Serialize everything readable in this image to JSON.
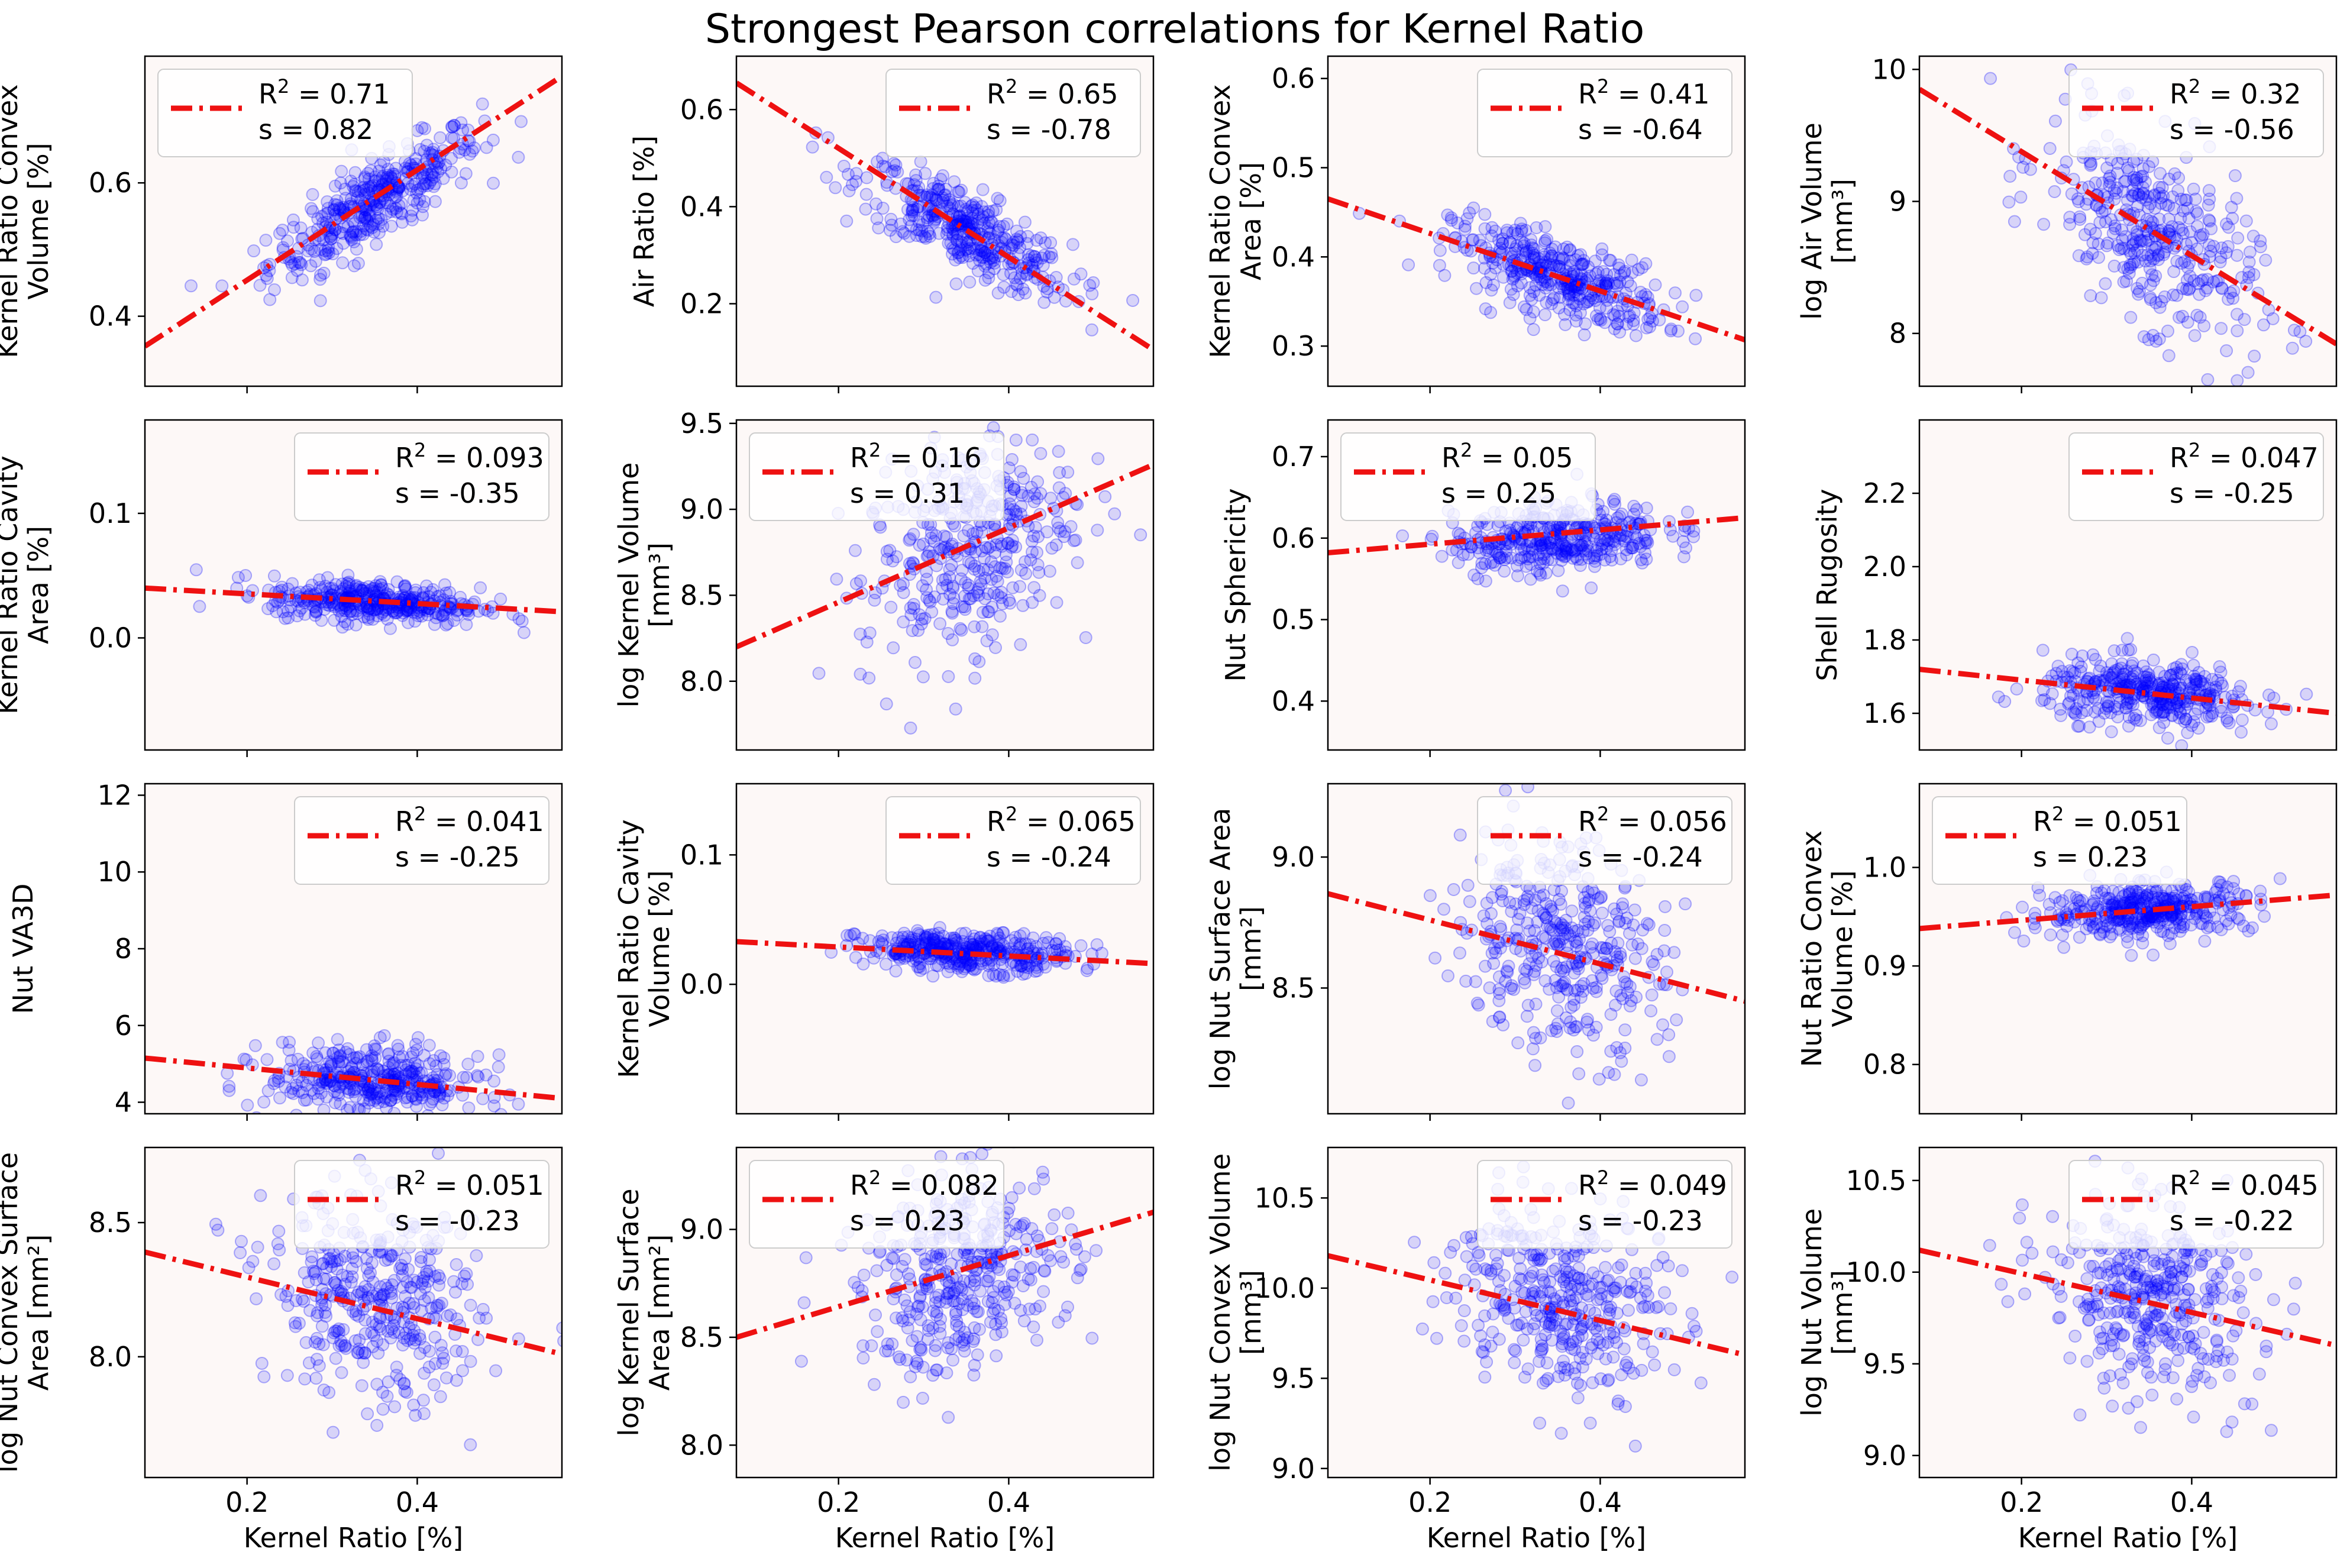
{
  "figure": {
    "title": "Strongest Pearson correlations for Kernel Ratio",
    "xlabel": "Kernel Ratio [%]",
    "xlim": [
      0.08,
      0.57
    ],
    "xticks": [
      0.2,
      0.4
    ],
    "xticklabels": [
      "0.2",
      "0.4"
    ]
  },
  "colors": {
    "points": "#0000ff",
    "fit_line": "#ee1111",
    "panel_bg": "#fdf8f7",
    "legend_bg": "#ffffff",
    "legend_edge": "#cccccc"
  },
  "legend": {
    "r2_prefix": "R",
    "r2_sup": "2",
    "r2_suffix": " = ",
    "s_label": "s   = "
  },
  "chart_data": [
    {
      "type": "scatter",
      "ylabel": [
        "Kernel Ratio Convex",
        "Volume [%]"
      ],
      "ylim": [
        0.295,
        0.79
      ],
      "yticks": [
        0.4,
        0.6
      ],
      "yticklabels": [
        "0.4",
        "0.6"
      ],
      "r2": "0.71",
      "s": "0.82",
      "fit": [
        [
          0.08,
          0.355
        ],
        [
          0.57,
          0.76
        ]
      ],
      "legend_loc": "upper left",
      "cloud": {
        "cx": 0.35,
        "cy": 0.572,
        "sx": 0.062,
        "sy": 0.055,
        "rho": 0.84,
        "n": 380
      }
    },
    {
      "type": "scatter",
      "ylabel": [
        "Air Ratio [%]"
      ],
      "ylim": [
        0.03,
        0.71
      ],
      "yticks": [
        0.2,
        0.4,
        0.6
      ],
      "yticklabels": [
        "0.2",
        "0.4",
        "0.6"
      ],
      "r2": "0.65",
      "s": "-0.78",
      "fit": [
        [
          0.08,
          0.655
        ],
        [
          0.57,
          0.105
        ]
      ],
      "legend_loc": "upper right",
      "cloud": {
        "cx": 0.35,
        "cy": 0.35,
        "sx": 0.062,
        "sy": 0.07,
        "rho": -0.8,
        "n": 380
      }
    },
    {
      "type": "scatter",
      "ylabel": [
        "Kernel Ratio Convex",
        "Area [%]"
      ],
      "ylim": [
        0.255,
        0.625
      ],
      "yticks": [
        0.3,
        0.4,
        0.5,
        0.6
      ],
      "yticklabels": [
        "0.3",
        "0.4",
        "0.5",
        "0.6"
      ],
      "r2": "0.41",
      "s": "-0.64",
      "fit": [
        [
          0.08,
          0.465
        ],
        [
          0.57,
          0.307
        ]
      ],
      "legend_loc": "upper right",
      "cloud": {
        "cx": 0.35,
        "cy": 0.378,
        "sx": 0.062,
        "sy": 0.028,
        "rho": -0.64,
        "n": 380
      }
    },
    {
      "type": "scatter",
      "ylabel": [
        "log Air Volume",
        "[mm³]"
      ],
      "ylim": [
        7.6,
        10.1
      ],
      "yticks": [
        8,
        9,
        10
      ],
      "yticklabels": [
        "8",
        "9",
        "10"
      ],
      "r2": "0.32",
      "s": "-0.56",
      "fit": [
        [
          0.08,
          9.85
        ],
        [
          0.57,
          7.92
        ]
      ],
      "legend_loc": "upper right",
      "cloud": {
        "cx": 0.35,
        "cy": 8.78,
        "sx": 0.062,
        "sy": 0.42,
        "rho": -0.56,
        "n": 380
      }
    },
    {
      "type": "scatter",
      "ylabel": [
        "Kernel Ratio Cavity",
        "Area [%]"
      ],
      "ylim": [
        -0.09,
        0.175
      ],
      "yticks": [
        0.0,
        0.1
      ],
      "yticklabels": [
        "0.0",
        "0.1"
      ],
      "r2": "0.093",
      "s": "-0.35",
      "fit": [
        [
          0.08,
          0.04
        ],
        [
          0.57,
          0.021
        ]
      ],
      "legend_loc": "upper right",
      "cloud": {
        "cx": 0.35,
        "cy": 0.029,
        "sx": 0.062,
        "sy": 0.0085,
        "rho": -0.3,
        "n": 380
      }
    },
    {
      "type": "scatter",
      "ylabel": [
        "log Kernel Volume",
        "[mm³]"
      ],
      "ylim": [
        7.6,
        9.52
      ],
      "yticks": [
        8.0,
        8.5,
        9.0,
        9.5
      ],
      "yticklabels": [
        "8.0",
        "8.5",
        "9.0",
        "9.5"
      ],
      "r2": "0.16",
      "s": "0.31",
      "fit": [
        [
          0.08,
          8.2
        ],
        [
          0.57,
          9.26
        ]
      ],
      "legend_loc": "upper left",
      "cloud": {
        "cx": 0.35,
        "cy": 8.78,
        "sx": 0.062,
        "sy": 0.33,
        "rho": 0.35,
        "n": 380
      }
    },
    {
      "type": "scatter",
      "ylabel": [
        "Nut Sphericity"
      ],
      "ylim": [
        0.34,
        0.745
      ],
      "yticks": [
        0.4,
        0.5,
        0.6,
        0.7
      ],
      "yticklabels": [
        "0.4",
        "0.5",
        "0.6",
        "0.7"
      ],
      "r2": "0.05",
      "s": "0.25",
      "fit": [
        [
          0.08,
          0.582
        ],
        [
          0.57,
          0.625
        ]
      ],
      "legend_loc": "upper left",
      "cloud": {
        "cx": 0.35,
        "cy": 0.6,
        "sx": 0.062,
        "sy": 0.022,
        "rho": 0.25,
        "n": 380
      }
    },
    {
      "type": "scatter",
      "ylabel": [
        "Shell Rugosity"
      ],
      "ylim": [
        1.5,
        2.4
      ],
      "yticks": [
        1.6,
        1.8,
        2.0,
        2.2
      ],
      "yticklabels": [
        "1.6",
        "1.8",
        "2.0",
        "2.2"
      ],
      "r2": "0.047",
      "s": "-0.25",
      "fit": [
        [
          0.08,
          1.72
        ],
        [
          0.57,
          1.6
        ]
      ],
      "legend_loc": "upper right",
      "cloud": {
        "cx": 0.35,
        "cy": 1.655,
        "sx": 0.062,
        "sy": 0.045,
        "rho": -0.22,
        "n": 380
      }
    },
    {
      "type": "scatter",
      "ylabel": [
        "Nut VA3D"
      ],
      "ylim": [
        3.7,
        12.3
      ],
      "yticks": [
        4,
        6,
        8,
        10,
        12
      ],
      "yticklabels": [
        "4",
        "6",
        "8",
        "10",
        "12"
      ],
      "r2": "0.041",
      "s": "-0.25",
      "fit": [
        [
          0.08,
          5.15
        ],
        [
          0.57,
          4.1
        ]
      ],
      "legend_loc": "upper right",
      "cloud": {
        "cx": 0.35,
        "cy": 4.55,
        "sx": 0.062,
        "sy": 0.45,
        "rho": -0.22,
        "n": 380
      }
    },
    {
      "type": "scatter",
      "ylabel": [
        "Kernel Ratio Cavity",
        "Volume [%]"
      ],
      "ylim": [
        -0.1,
        0.155
      ],
      "yticks": [
        0.0,
        0.1
      ],
      "yticklabels": [
        "0.0",
        "0.1"
      ],
      "r2": "0.065",
      "s": "-0.24",
      "fit": [
        [
          0.08,
          0.033
        ],
        [
          0.57,
          0.016
        ]
      ],
      "legend_loc": "upper right",
      "cloud": {
        "cx": 0.35,
        "cy": 0.025,
        "sx": 0.062,
        "sy": 0.0075,
        "rho": -0.24,
        "n": 380
      }
    },
    {
      "type": "scatter",
      "ylabel": [
        "log Nut Surface Area",
        "[mm²]"
      ],
      "ylim": [
        8.02,
        9.28
      ],
      "yticks": [
        8.5,
        9.0
      ],
      "yticklabels": [
        "8.5",
        "9.0"
      ],
      "r2": "0.056",
      "s": "-0.24",
      "fit": [
        [
          0.08,
          8.86
        ],
        [
          0.57,
          8.45
        ]
      ],
      "legend_loc": "upper right",
      "cloud": {
        "cx": 0.35,
        "cy": 8.67,
        "sx": 0.062,
        "sy": 0.21,
        "rho": -0.24,
        "n": 380
      }
    },
    {
      "type": "scatter",
      "ylabel": [
        "Nut Ratio Convex",
        "Volume [%]"
      ],
      "ylim": [
        0.75,
        1.085
      ],
      "yticks": [
        0.8,
        0.9,
        1.0
      ],
      "yticklabels": [
        "0.8",
        "0.9",
        "1.0"
      ],
      "r2": "0.051",
      "s": "0.23",
      "fit": [
        [
          0.08,
          0.938
        ],
        [
          0.57,
          0.972
        ]
      ],
      "legend_loc": "upper left",
      "cloud": {
        "cx": 0.35,
        "cy": 0.957,
        "sx": 0.062,
        "sy": 0.014,
        "rho": 0.23,
        "n": 380
      }
    },
    {
      "type": "scatter",
      "ylabel": [
        "log Nut Convex Surface",
        "Area [mm²]"
      ],
      "ylim": [
        7.55,
        8.78
      ],
      "yticks": [
        8.0,
        8.5
      ],
      "yticklabels": [
        "8.0",
        "8.5"
      ],
      "r2": "0.051",
      "s": "-0.23",
      "fit": [
        [
          0.08,
          8.39
        ],
        [
          0.57,
          8.01
        ]
      ],
      "legend_loc": "upper right",
      "cloud": {
        "cx": 0.35,
        "cy": 8.2,
        "sx": 0.062,
        "sy": 0.19,
        "rho": -0.23,
        "n": 380
      }
    },
    {
      "type": "scatter",
      "ylabel": [
        "log Kernel Surface",
        "Area [mm²]"
      ],
      "ylim": [
        7.85,
        9.38
      ],
      "yticks": [
        8.0,
        8.5,
        9.0
      ],
      "yticklabels": [
        "8.0",
        "8.5",
        "9.0"
      ],
      "r2": "0.082",
      "s": "0.23",
      "fit": [
        [
          0.08,
          8.5
        ],
        [
          0.57,
          9.08
        ]
      ],
      "legend_loc": "upper left",
      "cloud": {
        "cx": 0.35,
        "cy": 8.8,
        "sx": 0.062,
        "sy": 0.23,
        "rho": 0.28,
        "n": 380
      }
    },
    {
      "type": "scatter",
      "ylabel": [
        "log Nut Convex Volume",
        "[mm³]"
      ],
      "ylim": [
        8.95,
        10.78
      ],
      "yticks": [
        9.0,
        9.5,
        10.0,
        10.5
      ],
      "yticklabels": [
        "9.0",
        "9.5",
        "10.0",
        "10.5"
      ],
      "r2": "0.049",
      "s": "-0.23",
      "fit": [
        [
          0.08,
          10.18
        ],
        [
          0.57,
          9.63
        ]
      ],
      "legend_loc": "upper right",
      "cloud": {
        "cx": 0.35,
        "cy": 9.95,
        "sx": 0.062,
        "sy": 0.27,
        "rho": -0.23,
        "n": 380
      }
    },
    {
      "type": "scatter",
      "ylabel": [
        "log Nut Volume",
        "[mm³]"
      ],
      "ylim": [
        8.88,
        10.68
      ],
      "yticks": [
        9.0,
        9.5,
        10.0,
        10.5
      ],
      "yticklabels": [
        "9.0",
        "9.5",
        "10.0",
        "10.5"
      ],
      "r2": "0.045",
      "s": "-0.22",
      "fit": [
        [
          0.08,
          10.12
        ],
        [
          0.57,
          9.6
        ]
      ],
      "legend_loc": "upper right",
      "cloud": {
        "cx": 0.35,
        "cy": 9.87,
        "sx": 0.062,
        "sy": 0.27,
        "rho": -0.22,
        "n": 380
      }
    }
  ]
}
